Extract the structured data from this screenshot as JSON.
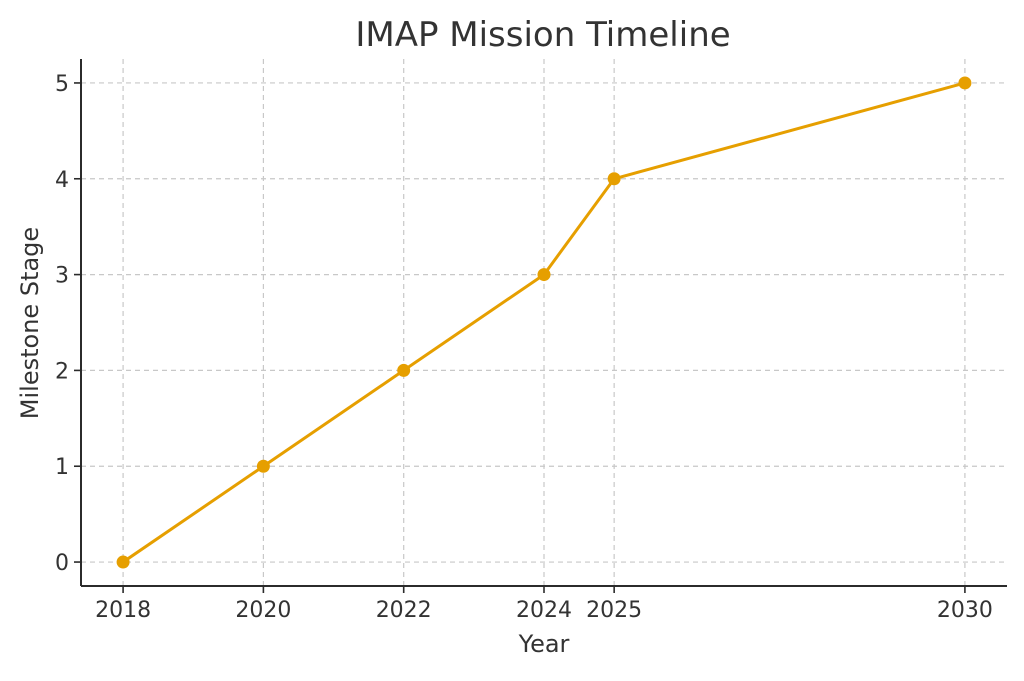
{
  "chart_data": {
    "type": "line",
    "title": "IMAP Mission Timeline",
    "xlabel": "Year",
    "ylabel": "Milestone Stage",
    "x": [
      2018,
      2020,
      2022,
      2024,
      2025,
      2030
    ],
    "x_tick_labels": [
      "2018",
      "2020",
      "2022",
      "2024",
      "2025",
      "2030"
    ],
    "y_ticks": [
      0,
      1,
      2,
      3,
      4,
      5
    ],
    "y_tick_labels": [
      "0",
      "1",
      "2",
      "3",
      "4",
      "5"
    ],
    "xlim": [
      2017.4,
      2030.6
    ],
    "ylim": [
      -0.25,
      5.25
    ],
    "series": [
      {
        "values": [
          0,
          1,
          2,
          3,
          4,
          5
        ]
      }
    ],
    "grid": true,
    "marker": "circle",
    "color": "#E69F00"
  }
}
